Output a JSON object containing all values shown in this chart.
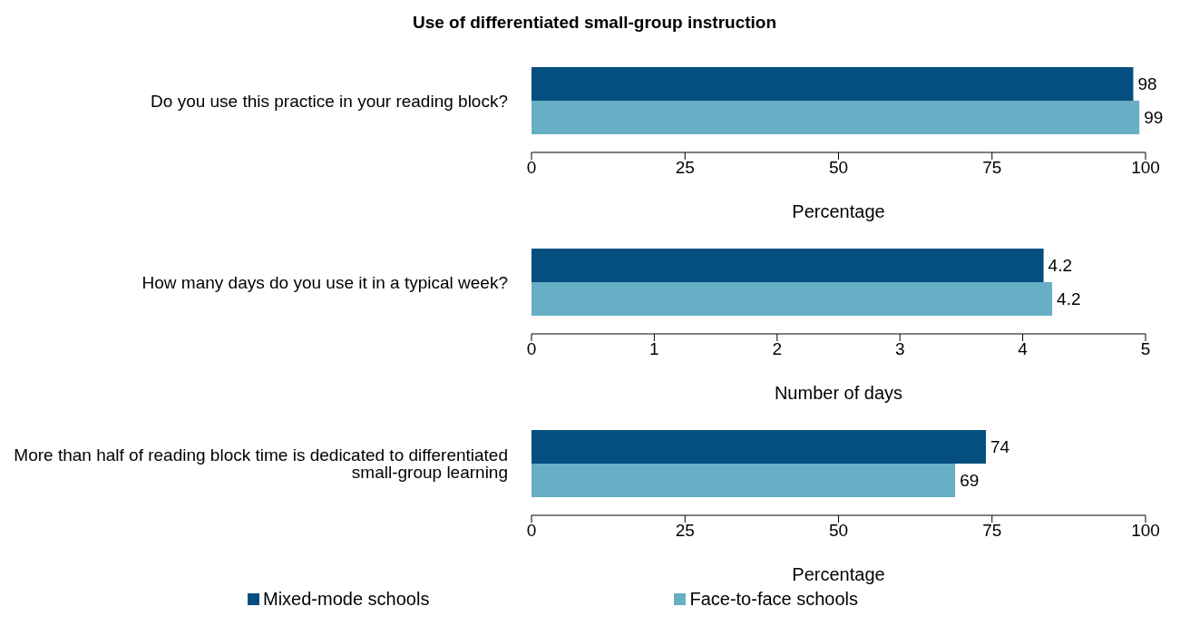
{
  "chart_data": [
    {
      "type": "bar",
      "orientation": "horizontal",
      "title": "Use of differentiated small-group instruction",
      "categories": [
        "Do you use this practice in your reading block?"
      ],
      "xlabel": "Percentage",
      "xlim": [
        0,
        100
      ],
      "xticks": [
        0,
        25,
        50,
        75,
        100
      ],
      "data_labels": true,
      "series": [
        {
          "color": "#044f7f",
          "values": [
            98
          ]
        },
        {
          "color": "#68afc6",
          "values": [
            99
          ]
        }
      ]
    },
    {
      "type": "bar",
      "orientation": "horizontal",
      "categories": [
        "How many days do you use it in a typical week?"
      ],
      "xlabel": "Number of days",
      "xlim": [
        0,
        5
      ],
      "xticks": [
        0,
        1,
        2,
        3,
        4,
        5
      ],
      "series": [
        {
          "color": "#044f7f",
          "values": [
            4.17
          ],
          "value_labels": [
            "4.2"
          ]
        },
        {
          "color": "#68afc6",
          "values": [
            4.24
          ],
          "value_labels": [
            "4.2"
          ]
        }
      ]
    },
    {
      "type": "bar",
      "orientation": "horizontal",
      "categories": [
        "More than half of reading block time is dedicated to differentiated small-group learning"
      ],
      "xlabel": "Percentage",
      "xlim": [
        0,
        100
      ],
      "xticks": [
        0,
        25,
        50,
        75,
        100
      ],
      "data_labels": true,
      "legend": "bottom",
      "series": [
        {
          "name": "Mixed-mode schools",
          "color": "#044f7f",
          "values": [
            74
          ]
        },
        {
          "name": "Face-to-face schools",
          "color": "#68afc6",
          "values": [
            69
          ]
        }
      ]
    }
  ]
}
